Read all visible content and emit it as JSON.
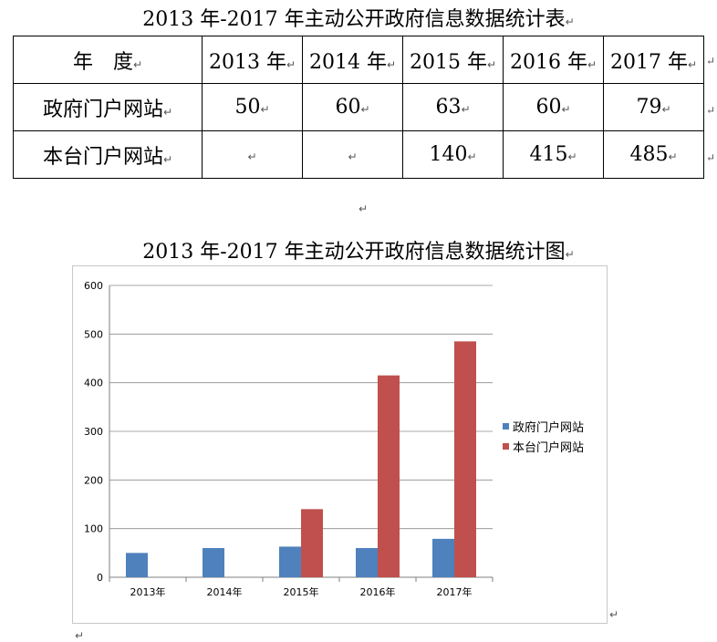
{
  "doc": {
    "table_title": "2013 年-2017 年主动公开政府信息数据统计表",
    "chart_title": "2013 年-2017 年主动公开政府信息数据统计图",
    "mark": "↵"
  },
  "table": {
    "header": [
      "年　度",
      "2013 年",
      "2014 年",
      "2015 年",
      "2016 年",
      "2017 年"
    ],
    "rows": [
      {
        "label": "政府门户网站",
        "values": [
          "50",
          "60",
          "63",
          "60",
          "79"
        ]
      },
      {
        "label": "本台门户网站",
        "values": [
          "",
          "",
          "140",
          "415",
          "485"
        ]
      }
    ]
  },
  "chart_data": {
    "type": "bar",
    "title": "",
    "xlabel": "",
    "ylabel": "",
    "categories": [
      "2013年",
      "2014年",
      "2015年",
      "2016年",
      "2017年"
    ],
    "series": [
      {
        "name": "政府门户网站",
        "values": [
          50,
          60,
          63,
          60,
          79
        ],
        "color": "#4f81bd"
      },
      {
        "name": "本台门户网站",
        "values": [
          null,
          null,
          140,
          415,
          485
        ],
        "color": "#c0504d"
      }
    ],
    "ylim": [
      0,
      600
    ],
    "yticks": [
      0,
      100,
      200,
      300,
      400,
      500,
      600
    ],
    "grid": true,
    "legend_position": "right"
  }
}
